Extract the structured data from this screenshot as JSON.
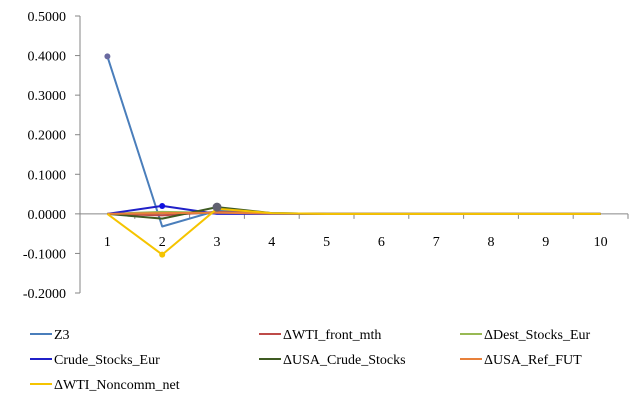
{
  "chart_data": {
    "type": "line",
    "x": [
      1,
      2,
      3,
      4,
      5,
      6,
      7,
      8,
      9,
      10
    ],
    "x_tick_labels": [
      "1",
      "2",
      "3",
      "4",
      "5",
      "6",
      "7",
      "8",
      "9",
      "10"
    ],
    "y_tick_labels": [
      "0.5000",
      "0.4000",
      "0.3000",
      "0.2000",
      "0.1000",
      "0.0000",
      "-0.1000",
      "-0.2000"
    ],
    "ylim": [
      -0.2,
      0.5
    ],
    "grid": false,
    "legend_position": "bottom",
    "series": [
      {
        "name": "Z3",
        "color": "#4a7ebb",
        "values": [
          0.398,
          -0.032,
          0.008,
          0.002,
          0.0,
          0.0,
          0.0,
          0.0,
          0.0,
          0.0
        ]
      },
      {
        "name": "ΔWTI_front_mth",
        "color": "#be4b48",
        "values": [
          0.0,
          -0.004,
          0.005,
          0.001,
          0.0,
          0.0,
          0.0,
          0.0,
          0.0,
          0.0
        ]
      },
      {
        "name": "ΔDest_Stocks_Eur",
        "color": "#98b954",
        "values": [
          0.0,
          0.005,
          0.003,
          0.001,
          0.0,
          0.0,
          0.0,
          0.0,
          0.0,
          0.0
        ]
      },
      {
        "name": "Crude_Stocks_Eur",
        "color": "#2020c8",
        "values": [
          0.0,
          0.02,
          0.0,
          0.0,
          0.0,
          0.0,
          0.0,
          0.0,
          0.0,
          0.0
        ]
      },
      {
        "name": "ΔUSA_Crude_Stocks",
        "color": "#3f5b22",
        "values": [
          0.0,
          -0.012,
          0.017,
          0.002,
          0.0,
          0.0,
          0.0,
          0.0,
          0.0,
          0.0
        ]
      },
      {
        "name": "ΔUSA_Ref_FUT",
        "color": "#e8803a",
        "values": [
          0.0,
          0.002,
          0.003,
          0.001,
          0.0,
          0.0,
          0.0,
          0.0,
          0.0,
          0.0
        ]
      },
      {
        "name": "ΔWTI_Noncomm_net",
        "color": "#f5c400",
        "values": [
          0.0,
          -0.103,
          0.013,
          0.002,
          0.0,
          0.0,
          0.0,
          0.0,
          0.0,
          0.0
        ]
      }
    ],
    "markers": [
      {
        "series": "Z3",
        "x": 1,
        "y": 0.398,
        "color": "#6a6aa0"
      },
      {
        "series": "Crude_Stocks_Eur",
        "x": 2,
        "y": 0.02,
        "color": "#1010e0"
      },
      {
        "series": "ΔWTI_Noncomm_net",
        "x": 2,
        "y": -0.103,
        "color": "#f5c400"
      },
      {
        "series": "ΔUSA_Crude_Stocks",
        "x": 3,
        "y": 0.017,
        "color": "#606070"
      }
    ]
  }
}
